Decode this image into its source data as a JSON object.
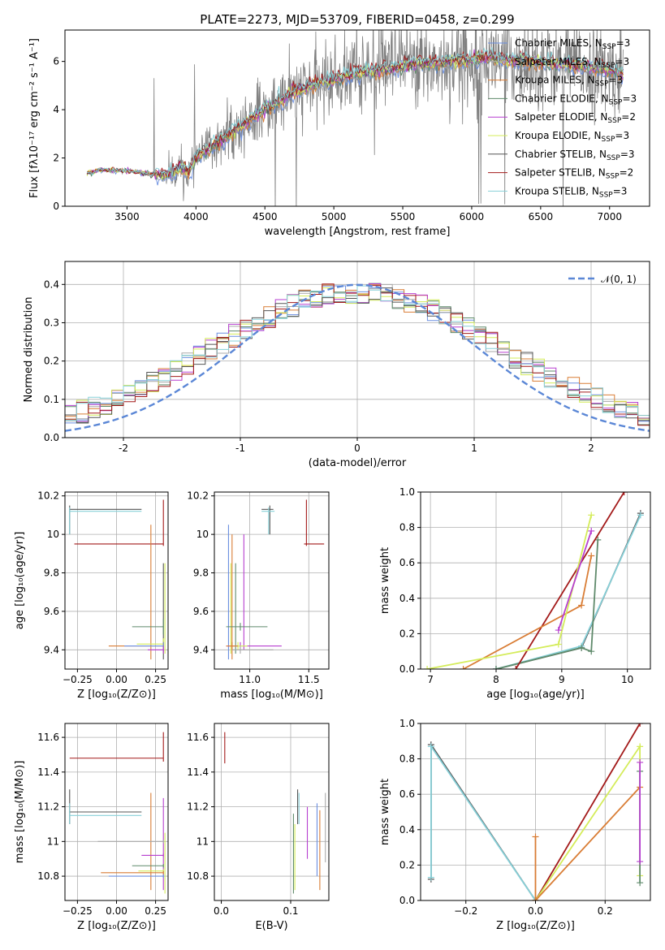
{
  "colors": {
    "chabrier_miles": "#6b8fe0",
    "salpeter_miles": "#a9a9a9",
    "kroupa_miles": "#d97d35",
    "chabrier_elodie": "#5f8a6b",
    "salpeter_elodie": "#b73fd0",
    "kroupa_elodie": "#d4ec59",
    "chabrier_stelib": "#555555",
    "salpeter_stelib": "#a31a1a",
    "kroupa_stelib": "#87d0d8",
    "observed": "#808080",
    "normal": "#5b87d6"
  },
  "chart_data": [
    {
      "id": "spectrum",
      "type": "line",
      "title": "PLATE=2273, MJD=53709, FIBERID=0458, z=0.299",
      "xlabel": "wavelength [Angstrom, rest frame]",
      "ylabel": "Flux [fλ10⁻¹⁷ erg cm⁻² s⁻¹ A⁻¹]",
      "xlim": [
        3050,
        7290
      ],
      "ylim": [
        0,
        7.3
      ],
      "xticks": [
        3500,
        4000,
        4500,
        5000,
        5500,
        6000,
        6500,
        7000
      ],
      "yticks": [
        0,
        2,
        4,
        6
      ],
      "grid": false,
      "legend_position": "right",
      "legend": [
        {
          "label": "Chabrier MILES, N",
          "sub": "SSP",
          "tail": "=3",
          "color_key": "chabrier_miles"
        },
        {
          "label": "Salpeter MILES, N",
          "sub": "SSP",
          "tail": "=3",
          "color_key": "salpeter_miles"
        },
        {
          "label": "Kroupa MILES, N",
          "sub": "SSP",
          "tail": "=3",
          "color_key": "kroupa_miles"
        },
        {
          "label": "Chabrier ELODIE, N",
          "sub": "SSP",
          "tail": "=3",
          "color_key": "chabrier_elodie"
        },
        {
          "label": "Salpeter ELODIE, N",
          "sub": "SSP",
          "tail": "=2",
          "color_key": "salpeter_elodie"
        },
        {
          "label": "Kroupa ELODIE, N",
          "sub": "SSP",
          "tail": "=3",
          "color_key": "kroupa_elodie"
        },
        {
          "label": "Chabrier STELIB, N",
          "sub": "SSP",
          "tail": "=3",
          "color_key": "chabrier_stelib"
        },
        {
          "label": "Salpeter STELIB, N",
          "sub": "SSP",
          "tail": "=2",
          "color_key": "salpeter_stelib"
        },
        {
          "label": "Kroupa STELIB, N",
          "sub": "SSP",
          "tail": "=3",
          "color_key": "kroupa_stelib"
        }
      ],
      "continuum": [
        [
          3210,
          1.35
        ],
        [
          3300,
          1.5
        ],
        [
          3400,
          1.5
        ],
        [
          3500,
          1.45
        ],
        [
          3600,
          1.4
        ],
        [
          3700,
          1.3
        ],
        [
          3800,
          1.3
        ],
        [
          3900,
          1.6
        ],
        [
          3950,
          1.4
        ],
        [
          4000,
          2.0
        ],
        [
          4100,
          2.4
        ],
        [
          4200,
          2.8
        ],
        [
          4300,
          3.2
        ],
        [
          4400,
          3.6
        ],
        [
          4500,
          4.0
        ],
        [
          4600,
          4.3
        ],
        [
          4700,
          4.7
        ],
        [
          4800,
          4.9
        ],
        [
          4900,
          5.1
        ],
        [
          5000,
          5.25
        ],
        [
          5100,
          5.4
        ],
        [
          5200,
          5.55
        ],
        [
          5300,
          5.6
        ],
        [
          5400,
          5.7
        ],
        [
          5500,
          5.8
        ],
        [
          5600,
          5.9
        ],
        [
          5700,
          5.9
        ],
        [
          5800,
          5.95
        ],
        [
          5900,
          6.0
        ],
        [
          6000,
          6.05
        ],
        [
          6100,
          6.15
        ],
        [
          6200,
          6.1
        ],
        [
          6300,
          6.05
        ],
        [
          6400,
          6.0
        ],
        [
          6500,
          5.95
        ],
        [
          6600,
          5.9
        ],
        [
          6700,
          5.85
        ],
        [
          6800,
          5.8
        ],
        [
          6900,
          5.7
        ],
        [
          7000,
          5.6
        ],
        [
          7100,
          5.5
        ]
      ]
    },
    {
      "id": "residuals",
      "type": "histogram",
      "xlabel": "(data-model)/error",
      "ylabel": "Normed distribution",
      "xlim": [
        -2.5,
        2.5
      ],
      "ylim": [
        0,
        0.46
      ],
      "xticks": [
        -2,
        -1,
        0,
        1,
        2
      ],
      "yticks": [
        0.0,
        0.1,
        0.2,
        0.3,
        0.4
      ],
      "grid": true,
      "legend_position": "top-right",
      "legend_label": "𝒩(0, 1)",
      "bin_width": 0.1,
      "normal": {
        "mean": 0,
        "sigma": 1
      }
    },
    {
      "id": "age-vs-Z",
      "type": "errorbar",
      "xlabel": "Z [log₁₀(Z/Z⊙)]",
      "ylabel": "age  [log₁₀(age/yr)]",
      "xlim": [
        -0.33,
        0.33
      ],
      "ylim": [
        9.3,
        10.22
      ],
      "xticks": [
        -0.25,
        0.0,
        0.25
      ],
      "xtick_labels": [
        "−0.25",
        "0.00",
        "0.25"
      ],
      "yticks": [
        9.4,
        9.6,
        9.8,
        10.0,
        10.2
      ],
      "grid": true,
      "points": [
        {
          "x": 0.3,
          "y": 9.95,
          "xlo": -0.27,
          "xhi": 0.3,
          "ylo": 9.94,
          "yhi": 10.18,
          "color_key": "salpeter_stelib"
        },
        {
          "x": -0.3,
          "y": 10.13,
          "xlo": -0.3,
          "xhi": 0.16,
          "ylo": 10.0,
          "yhi": 10.15,
          "color_key": "chabrier_stelib"
        },
        {
          "x": -0.3,
          "y": 10.12,
          "xlo": -0.3,
          "xhi": 0.16,
          "ylo": 10.0,
          "yhi": 10.14,
          "color_key": "kroupa_stelib"
        },
        {
          "x": 0.22,
          "y": 9.6,
          "xlo": 0.22,
          "xhi": 0.22,
          "ylo": 9.35,
          "yhi": 10.05,
          "color_key": "kroupa_miles"
        },
        {
          "x": 0.3,
          "y": 9.6,
          "xlo": 0.3,
          "xhi": 0.3,
          "ylo": 9.35,
          "yhi": 9.85,
          "color_key": "chabrier_stelib"
        },
        {
          "x": 0.31,
          "y": 9.6,
          "xlo": 0.31,
          "xhi": 0.31,
          "ylo": 9.38,
          "yhi": 9.85,
          "color_key": "kroupa_elodie"
        },
        {
          "x": 0.3,
          "y": 9.52,
          "xlo": 0.1,
          "xhi": 0.3,
          "ylo": 9.48,
          "yhi": 9.56,
          "color_key": "chabrier_elodie"
        },
        {
          "x": 0.3,
          "y": 9.43,
          "xlo": 0.13,
          "xhi": 0.3,
          "ylo": 9.4,
          "yhi": 9.46,
          "color_key": "kroupa_elodie"
        },
        {
          "x": 0.3,
          "y": 9.42,
          "xlo": -0.05,
          "xhi": 0.3,
          "ylo": 9.4,
          "yhi": 9.44,
          "color_key": "kroupa_miles"
        },
        {
          "x": 0.3,
          "y": 9.42,
          "xlo": 0.05,
          "xhi": 0.3,
          "ylo": 9.4,
          "yhi": 9.44,
          "color_key": "chabrier_miles"
        },
        {
          "x": 0.3,
          "y": 9.4,
          "xlo": 0.2,
          "xhi": 0.3,
          "ylo": 9.38,
          "yhi": 9.42,
          "color_key": "salpeter_elodie"
        }
      ]
    },
    {
      "id": "age-vs-mass",
      "type": "errorbar",
      "xlabel": "mass [log₁₀(M/M⊙)]",
      "ylabel": "",
      "xlim": [
        10.7,
        11.67
      ],
      "ylim": [
        9.3,
        10.22
      ],
      "xticks": [
        11.0,
        11.5
      ],
      "xtick_labels": [
        "11.0",
        "11.5"
      ],
      "yticks": [
        9.4,
        9.6,
        9.8,
        10.0,
        10.2
      ],
      "grid": true,
      "points": [
        {
          "x": 11.48,
          "y": 9.95,
          "xlo": 11.46,
          "xhi": 11.63,
          "ylo": 9.94,
          "yhi": 10.18,
          "color_key": "salpeter_stelib"
        },
        {
          "x": 11.17,
          "y": 10.13,
          "xlo": 11.1,
          "xhi": 11.2,
          "ylo": 10.0,
          "yhi": 10.15,
          "color_key": "chabrier_stelib"
        },
        {
          "x": 11.16,
          "y": 10.12,
          "xlo": 11.1,
          "xhi": 11.21,
          "ylo": 10.0,
          "yhi": 10.14,
          "color_key": "kroupa_stelib"
        },
        {
          "x": 10.82,
          "y": 9.6,
          "xlo": 10.82,
          "xhi": 10.82,
          "ylo": 9.35,
          "yhi": 10.05,
          "color_key": "chabrier_miles"
        },
        {
          "x": 10.85,
          "y": 9.6,
          "xlo": 10.85,
          "xhi": 10.85,
          "ylo": 9.35,
          "yhi": 10.0,
          "color_key": "kroupa_miles"
        },
        {
          "x": 10.88,
          "y": 9.6,
          "xlo": 10.88,
          "xhi": 10.88,
          "ylo": 9.38,
          "yhi": 9.85,
          "color_key": "chabrier_elodie"
        },
        {
          "x": 10.84,
          "y": 9.6,
          "xlo": 10.84,
          "xhi": 10.84,
          "ylo": 9.38,
          "yhi": 9.85,
          "color_key": "kroupa_elodie"
        },
        {
          "x": 10.95,
          "y": 9.7,
          "xlo": 10.95,
          "xhi": 10.95,
          "ylo": 9.4,
          "yhi": 10.0,
          "color_key": "salpeter_elodie"
        },
        {
          "x": 10.92,
          "y": 9.52,
          "xlo": 10.8,
          "xhi": 11.15,
          "ylo": 9.5,
          "yhi": 9.54,
          "color_key": "chabrier_elodie"
        },
        {
          "x": 10.92,
          "y": 9.42,
          "xlo": 10.8,
          "xhi": 11.27,
          "ylo": 9.4,
          "yhi": 9.44,
          "color_key": "salpeter_elodie"
        },
        {
          "x": 10.9,
          "y": 9.42,
          "xlo": 10.85,
          "xhi": 10.98,
          "ylo": 9.4,
          "yhi": 9.44,
          "color_key": "kroupa_elodie"
        },
        {
          "x": 10.85,
          "y": 9.42,
          "xlo": 10.8,
          "xhi": 10.9,
          "ylo": 9.4,
          "yhi": 9.44,
          "color_key": "kroupa_miles"
        },
        {
          "x": 10.92,
          "y": 9.4,
          "xlo": 10.85,
          "xhi": 11.2,
          "ylo": 9.38,
          "yhi": 9.42,
          "color_key": "salpeter_miles"
        }
      ]
    },
    {
      "id": "mass-weight-vs-age",
      "type": "line",
      "xlabel": "age  [log₁₀(age/yr)]",
      "ylabel": "mass weight",
      "xlim": [
        6.85,
        10.35
      ],
      "ylim": [
        0,
        1.0
      ],
      "xticks": [
        7,
        8,
        9,
        10
      ],
      "yticks": [
        0.0,
        0.2,
        0.4,
        0.6,
        0.8,
        1.0
      ],
      "grid": true,
      "series": [
        {
          "color_key": "chabrier_stelib",
          "x": [
            8.0,
            9.3,
            10.2
          ],
          "y": [
            0.0,
            0.12,
            0.88
          ]
        },
        {
          "color_key": "kroupa_stelib",
          "x": [
            8.0,
            9.3,
            10.2
          ],
          "y": [
            0.0,
            0.13,
            0.87
          ]
        },
        {
          "color_key": "chabrier_elodie",
          "x": [
            8.0,
            9.3,
            9.45,
            9.55
          ],
          "y": [
            0.0,
            0.12,
            0.1,
            0.73
          ]
        },
        {
          "color_key": "salpeter_stelib",
          "x": [
            8.3,
            9.95
          ],
          "y": [
            0.0,
            1.0
          ]
        },
        {
          "color_key": "kroupa_miles",
          "x": [
            7.5,
            9.3,
            9.45
          ],
          "y": [
            0.0,
            0.36,
            0.64
          ]
        },
        {
          "color_key": "kroupa_elodie",
          "x": [
            6.95,
            8.95,
            9.45
          ],
          "y": [
            0.0,
            0.14,
            0.87
          ]
        },
        {
          "color_key": "salpeter_elodie",
          "x": [
            8.95,
            9.45
          ],
          "y": [
            0.22,
            0.78
          ]
        }
      ]
    },
    {
      "id": "mass-vs-Z",
      "type": "errorbar",
      "xlabel": "Z [log₁₀(Z/Z⊙)]",
      "ylabel": "mass [log₁₀(M/M⊙)]",
      "xlim": [
        -0.33,
        0.33
      ],
      "ylim": [
        10.66,
        11.68
      ],
      "xticks": [
        -0.25,
        0.0,
        0.25
      ],
      "xtick_labels": [
        "−0.25",
        "0.00",
        "0.25"
      ],
      "yticks": [
        10.8,
        11.0,
        11.2,
        11.4,
        11.6
      ],
      "grid": true,
      "points": [
        {
          "x": 0.3,
          "y": 11.48,
          "xlo": -0.3,
          "xhi": 0.3,
          "ylo": 11.46,
          "yhi": 11.63,
          "color_key": "salpeter_stelib"
        },
        {
          "x": -0.3,
          "y": 11.17,
          "xlo": -0.3,
          "xhi": 0.16,
          "ylo": 11.1,
          "yhi": 11.3,
          "color_key": "chabrier_stelib"
        },
        {
          "x": -0.3,
          "y": 11.15,
          "xlo": -0.3,
          "xhi": 0.16,
          "ylo": 11.1,
          "yhi": 11.22,
          "color_key": "kroupa_stelib"
        },
        {
          "x": 0.22,
          "y": 11.0,
          "xlo": 0.22,
          "xhi": 0.22,
          "ylo": 10.72,
          "yhi": 11.28,
          "color_key": "kroupa_miles"
        },
        {
          "x": 0.3,
          "y": 11.05,
          "xlo": 0.3,
          "xhi": 0.3,
          "ylo": 10.72,
          "yhi": 11.25,
          "color_key": "salpeter_elodie"
        },
        {
          "x": 0.31,
          "y": 10.9,
          "xlo": 0.31,
          "xhi": 0.31,
          "ylo": 10.7,
          "yhi": 11.05,
          "color_key": "kroupa_elodie"
        },
        {
          "x": 0.3,
          "y": 11.0,
          "xlo": -0.12,
          "xhi": 0.3,
          "ylo": 10.99,
          "yhi": 11.01,
          "color_key": "salpeter_miles"
        },
        {
          "x": 0.3,
          "y": 10.92,
          "xlo": 0.16,
          "xhi": 0.3,
          "ylo": 10.91,
          "yhi": 10.93,
          "color_key": "salpeter_elodie"
        },
        {
          "x": 0.3,
          "y": 10.86,
          "xlo": 0.1,
          "xhi": 0.3,
          "ylo": 10.85,
          "yhi": 10.87,
          "color_key": "chabrier_elodie"
        },
        {
          "x": 0.3,
          "y": 10.83,
          "xlo": 0.14,
          "xhi": 0.3,
          "ylo": 10.82,
          "yhi": 10.84,
          "color_key": "kroupa_elodie"
        },
        {
          "x": 0.3,
          "y": 10.82,
          "xlo": -0.1,
          "xhi": 0.3,
          "ylo": 10.81,
          "yhi": 10.83,
          "color_key": "kroupa_miles"
        },
        {
          "x": 0.3,
          "y": 10.8,
          "xlo": -0.05,
          "xhi": 0.3,
          "ylo": 10.79,
          "yhi": 10.81,
          "color_key": "chabrier_miles"
        }
      ]
    },
    {
      "id": "mass-vs-ebv",
      "type": "errorbar",
      "xlabel": "E(B-V)",
      "ylabel": "",
      "xlim": [
        -0.01,
        0.155
      ],
      "ylim": [
        10.66,
        11.68
      ],
      "xticks": [
        0.0,
        0.1
      ],
      "xtick_labels": [
        "0.0",
        "0.1"
      ],
      "yticks": [
        10.8,
        11.0,
        11.2,
        11.4,
        11.6
      ],
      "grid": true,
      "points": [
        {
          "x": 0.005,
          "y": 11.55,
          "xlo": 0.005,
          "xhi": 0.005,
          "ylo": 11.45,
          "yhi": 11.63,
          "color_key": "salpeter_stelib"
        },
        {
          "x": 0.11,
          "y": 11.2,
          "xlo": 0.11,
          "xhi": 0.11,
          "ylo": 11.1,
          "yhi": 11.3,
          "color_key": "chabrier_stelib"
        },
        {
          "x": 0.112,
          "y": 11.2,
          "xlo": 0.112,
          "xhi": 0.112,
          "ylo": 11.1,
          "yhi": 11.28,
          "color_key": "kroupa_stelib"
        },
        {
          "x": 0.104,
          "y": 11.0,
          "xlo": 0.104,
          "xhi": 0.104,
          "ylo": 10.7,
          "yhi": 11.16,
          "color_key": "chabrier_elodie"
        },
        {
          "x": 0.106,
          "y": 10.95,
          "xlo": 0.106,
          "xhi": 0.106,
          "ylo": 10.72,
          "yhi": 11.1,
          "color_key": "kroupa_elodie"
        },
        {
          "x": 0.124,
          "y": 11.0,
          "xlo": 0.124,
          "xhi": 0.124,
          "ylo": 10.9,
          "yhi": 11.2,
          "color_key": "salpeter_elodie"
        },
        {
          "x": 0.138,
          "y": 11.0,
          "xlo": 0.138,
          "xhi": 0.138,
          "ylo": 10.8,
          "yhi": 11.22,
          "color_key": "chabrier_miles"
        },
        {
          "x": 0.142,
          "y": 11.0,
          "xlo": 0.142,
          "xhi": 0.142,
          "ylo": 10.72,
          "yhi": 11.18,
          "color_key": "kroupa_miles"
        },
        {
          "x": 0.15,
          "y": 11.05,
          "xlo": 0.15,
          "xhi": 0.15,
          "ylo": 10.88,
          "yhi": 11.28,
          "color_key": "salpeter_miles"
        }
      ]
    },
    {
      "id": "mass-weight-vs-Z",
      "type": "line",
      "xlabel": "Z [log₁₀(Z/Z⊙)]",
      "ylabel": "mass weight",
      "xlim": [
        -0.33,
        0.33
      ],
      "ylim": [
        0,
        1.0
      ],
      "xticks": [
        -0.2,
        0.0,
        0.2
      ],
      "xtick_labels": [
        "−0.2",
        "0.0",
        "0.2"
      ],
      "yticks": [
        0.0,
        0.2,
        0.4,
        0.6,
        0.8,
        1.0
      ],
      "grid": true,
      "series": [
        {
          "color_key": "chabrier_stelib",
          "x": [
            -0.3,
            -0.3,
            0.0
          ],
          "y": [
            0.12,
            0.88,
            0.0
          ]
        },
        {
          "color_key": "kroupa_stelib",
          "x": [
            -0.3,
            -0.3,
            0.0
          ],
          "y": [
            0.13,
            0.87,
            0.0
          ]
        },
        {
          "color_key": "salpeter_stelib",
          "x": [
            0.0,
            0.3
          ],
          "y": [
            0.0,
            1.0
          ]
        },
        {
          "color_key": "kroupa_elodie",
          "x": [
            0.0,
            0.3,
            0.3
          ],
          "y": [
            0.0,
            0.87,
            0.14
          ]
        },
        {
          "color_key": "kroupa_miles",
          "x": [
            0.0,
            0.0,
            0.0,
            0.3
          ],
          "y": [
            0.36,
            0.0,
            0.0,
            0.64
          ]
        },
        {
          "color_key": "chabrier_elodie",
          "x": [
            0.3,
            0.3
          ],
          "y": [
            0.73,
            0.1
          ]
        },
        {
          "color_key": "salpeter_elodie",
          "x": [
            0.3,
            0.3
          ],
          "y": [
            0.78,
            0.22
          ]
        }
      ]
    }
  ]
}
